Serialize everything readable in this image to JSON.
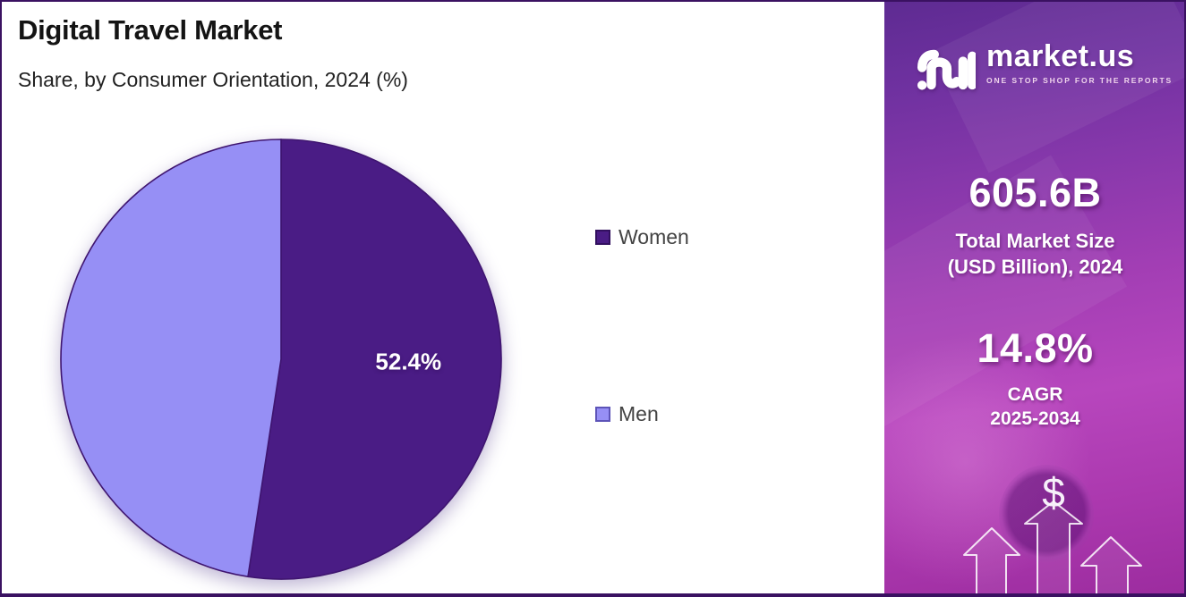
{
  "chart_data": {
    "type": "pie",
    "title": "Digital Travel Market",
    "subtitle": "Share, by Consumer Orientation, 2024 (%)",
    "start_angle": "top",
    "direction": "clockwise",
    "legend_position": "right",
    "slices": [
      {
        "label": "Women",
        "value": 52.4,
        "data_label": "52.4%",
        "color": "#4a1c85",
        "swatch_border": "#32105f"
      },
      {
        "label": "Men",
        "value": 47.6,
        "data_label": null,
        "color": "#968ff5",
        "swatch_border": "#5d54b8"
      }
    ],
    "style": {
      "slice_stroke": "#3f1570",
      "data_label_color": "#ffffff",
      "legend_text_color": "#434343"
    }
  },
  "sidebar": {
    "logo": {
      "brand": "market.us",
      "tagline": "ONE STOP SHOP FOR THE REPORTS"
    },
    "stats": [
      {
        "value": "605.6B",
        "label_line1": "Total Market Size",
        "label_line2": "(USD Billion), 2024"
      },
      {
        "value": "14.8%",
        "label_line1": "CAGR",
        "label_line2": "2025-2034"
      }
    ],
    "dollar_icon": "$",
    "colors": {
      "gradient_top": "#5e2b92",
      "gradient_mid": "#a23eb4",
      "gradient_bottom": "#9c2c9f",
      "text": "#ffffff"
    }
  },
  "frame": {
    "border_color": "#3a1161"
  }
}
